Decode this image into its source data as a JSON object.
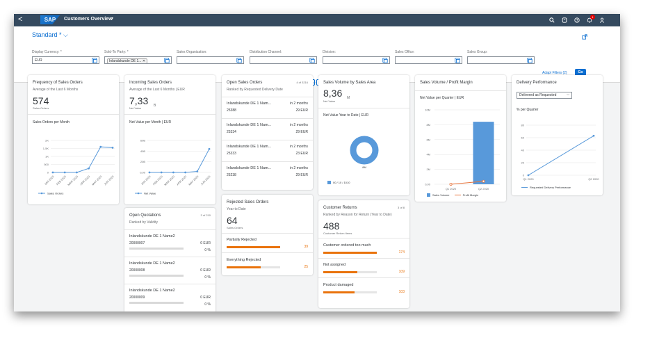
{
  "shell": {
    "back": "<",
    "logo": "SAP",
    "title": "Customers Overview",
    "caret": "▼",
    "notification_count": "1"
  },
  "header": {
    "variant": "Standard *",
    "filters": [
      {
        "label": "Display Currency: *",
        "value": "EUR"
      },
      {
        "label": "Sold-To Party: *",
        "token": "Inlandskunde DE 1..."
      },
      {
        "label": "Sales Organization:",
        "value": ""
      },
      {
        "label": "Distribution Channel:",
        "value": ""
      },
      {
        "label": "Division:",
        "value": ""
      },
      {
        "label": "Sales Office:",
        "value": ""
      },
      {
        "label": "Sales Group:",
        "value": ""
      }
    ],
    "adapt": "Adapt Filters (2)",
    "go": "Go"
  },
  "cards": {
    "frequency": {
      "title": "Frequency of Sales Orders",
      "subtitle": "Average of the Last 6 Months",
      "kpi": "574",
      "kpi_sub": "Sales Orders",
      "chart_title": "Sales Orders per Month",
      "legend": "Sales Orders"
    },
    "incoming": {
      "title": "Incoming Sales Orders",
      "subtitle": "Average of the Last 6 Months | EUR",
      "kpi": "7,33",
      "kpi_unit": "B",
      "kpi_sub": "Net Value",
      "chart_title": "Net Value per Month | EUR",
      "legend": "Net Value"
    },
    "open_orders": {
      "title": "Open Sales Orders",
      "count": "4 of 3216",
      "subtitle": "Ranked by Requested Delivery Date",
      "rows": [
        {
          "name": "Inlandskunde DE 1 Nam...",
          "num": "25388",
          "when": "in 2 months",
          "amount": "29 EUR"
        },
        {
          "name": "Inlandskunde DE 1 Nam...",
          "num": "25334",
          "when": "in 2 months",
          "amount": "29 EUR"
        },
        {
          "name": "Inlandskunde DE 1 Nam...",
          "num": "25333",
          "when": "in 2 months",
          "amount": "23 EUR"
        },
        {
          "name": "Inlandskunde DE 1 Nam...",
          "num": "25238",
          "when": "in 2 months",
          "amount": "29 EUR"
        }
      ]
    },
    "volume_area": {
      "title": "Sales Volume by Sales Area",
      "kpi": "8,36",
      "kpi_unit": "M",
      "kpi_sub": "Net Value",
      "chart_title": "Net Value Year to Date | EUR",
      "donut_label": "8M",
      "legend": "00 / 10 / 1010",
      "legend_color": "#5899da"
    },
    "volume_margin": {
      "title": "Sales Volume / Profit Margin",
      "chart_title": "Net Value per Quarter | EUR",
      "legend_a": "Sales Volume",
      "legend_b": "Profit Margin"
    },
    "delivery": {
      "title": "Delivery Performance",
      "select": "Delivered as Requested",
      "chart_title": "% per Quarter",
      "legend": "Requested Delivery Performance"
    },
    "quotations": {
      "title": "Open Quotations",
      "count": "3 of 210",
      "subtitle": "Ranked by Validity",
      "rows": [
        {
          "name": "Inlandskunde DE 1 Name2",
          "num": "20000007",
          "amount": "0 EUR",
          "pct": "0 %"
        },
        {
          "name": "Inlandskunde DE 1 Name2",
          "num": "20000008",
          "amount": "0 EUR",
          "pct": "0 %"
        },
        {
          "name": "Inlandskunde DE 1 Name2",
          "num": "20000009",
          "amount": "0 EUR",
          "pct": "0 %"
        }
      ]
    },
    "rejected": {
      "title": "Rejected Sales Orders",
      "subtitle": "Year to Date",
      "kpi": "64",
      "kpi_sub": "Sales Orders",
      "items": [
        {
          "label": "Partially Rejected",
          "value": "39",
          "fraction": 1.0
        },
        {
          "label": "Everything Rejected",
          "value": "25",
          "fraction": 0.64
        }
      ]
    },
    "returns": {
      "title": "Customer Returns",
      "count": "3 of 8",
      "subtitle": "Ranked by Reason for Return (Year to Date)",
      "kpi": "488",
      "kpi_sub": "Customer Return Items",
      "items": [
        {
          "label": "Customer ordered too much",
          "value": "174",
          "fraction": 1.0
        },
        {
          "label": "Not assigned",
          "value": "109",
          "fraction": 0.63
        },
        {
          "label": "Product damaged",
          "value": "103",
          "fraction": 0.59
        }
      ]
    }
  },
  "chart_data": [
    {
      "type": "line",
      "title": "Sales Orders per Month",
      "categories": [
        "JAN 2020",
        "FEB 2020",
        "MAR 2020",
        "APR 2020",
        "MAY 2020",
        "JUN 2020"
      ],
      "yticks": [
        "0",
        "500",
        "1K",
        "1,5K",
        "2K"
      ],
      "ylim": [
        0,
        2000
      ],
      "series": [
        {
          "name": "Sales Orders",
          "values": [
            0,
            0,
            0,
            250,
            1600,
            1550
          ]
        }
      ],
      "color": "#5899da"
    },
    {
      "type": "line",
      "title": "Net Value per Month | EUR",
      "categories": [
        "JAN 2020",
        "FEB 2020",
        "MAR 2020",
        "APR 2020",
        "MAY 2020",
        "JUN 2020"
      ],
      "yticks": [
        "0,00",
        "20B",
        "40B",
        "60B"
      ],
      "ylim": [
        0,
        60
      ],
      "series": [
        {
          "name": "Net Value",
          "values": [
            0,
            0,
            0,
            0,
            2,
            44
          ]
        }
      ],
      "color": "#5899da"
    },
    {
      "type": "bar",
      "title": "Net Value per Quarter | EUR",
      "categories": [
        "Q1 2020",
        "Q2 2020"
      ],
      "yticks": [
        "0,00",
        "2M",
        "4M",
        "6M",
        "8M",
        "10M"
      ],
      "ylim": [
        0,
        10
      ],
      "series": [
        {
          "name": "Sales Volume",
          "values": [
            0,
            8.4
          ],
          "color": "#5899da"
        },
        {
          "name": "Profit Margin",
          "values": [
            0,
            0.4
          ],
          "color": "#e8743b"
        }
      ]
    },
    {
      "type": "line",
      "title": "% per Quarter",
      "categories": [
        "Q1 2020",
        "Q2 2020"
      ],
      "yticks": [
        "0",
        "20",
        "40",
        "60",
        "80"
      ],
      "ylim": [
        0,
        80
      ],
      "series": [
        {
          "name": "Requested Delivery Performance",
          "values": [
            0,
            63
          ]
        }
      ],
      "color": "#5899da"
    }
  ]
}
